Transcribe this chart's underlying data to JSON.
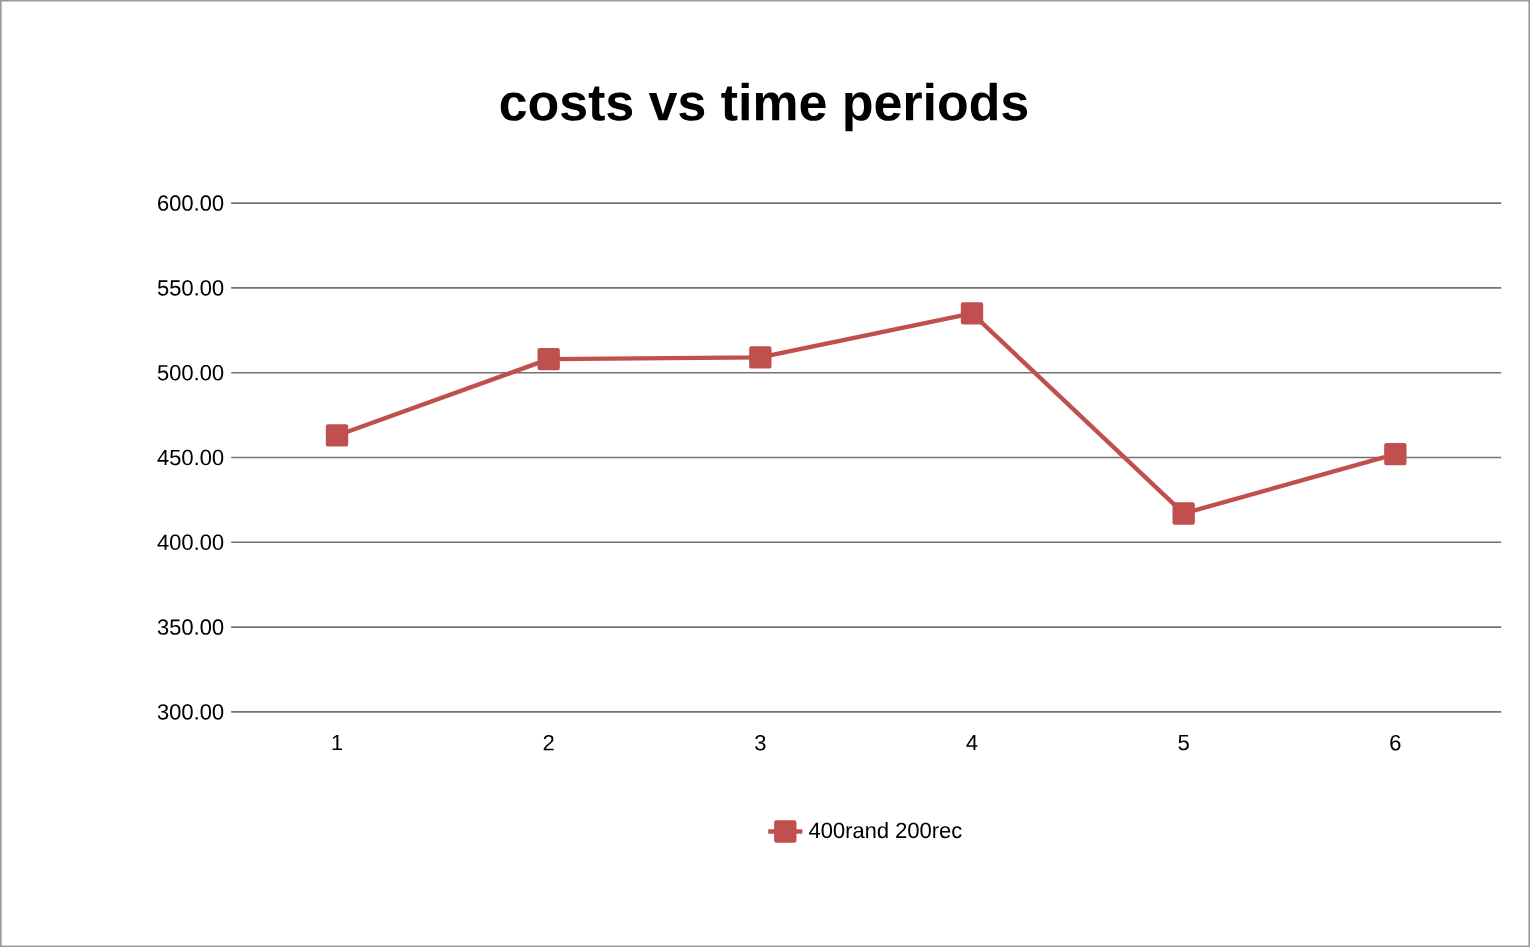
{
  "chart_data": {
    "type": "line",
    "title": "costs vs time periods",
    "categories": [
      "1",
      "2",
      "3",
      "4",
      "5",
      "6"
    ],
    "series": [
      {
        "name": "400rand 200rec",
        "color": "#c0504d",
        "values": [
          463,
          508,
          509,
          535,
          417,
          452
        ]
      }
    ],
    "ylim": [
      300,
      600
    ],
    "yticks": [
      {
        "value": 300,
        "label": "300.00"
      },
      {
        "value": 350,
        "label": "350.00"
      },
      {
        "value": 400,
        "label": "400.00"
      },
      {
        "value": 450,
        "label": "450.00"
      },
      {
        "value": 500,
        "label": "500.00"
      },
      {
        "value": 550,
        "label": "550.00"
      },
      {
        "value": 600,
        "label": "600.00"
      }
    ],
    "grid": "y",
    "legend": "bottom",
    "marker": "square",
    "line_style": "solid"
  }
}
